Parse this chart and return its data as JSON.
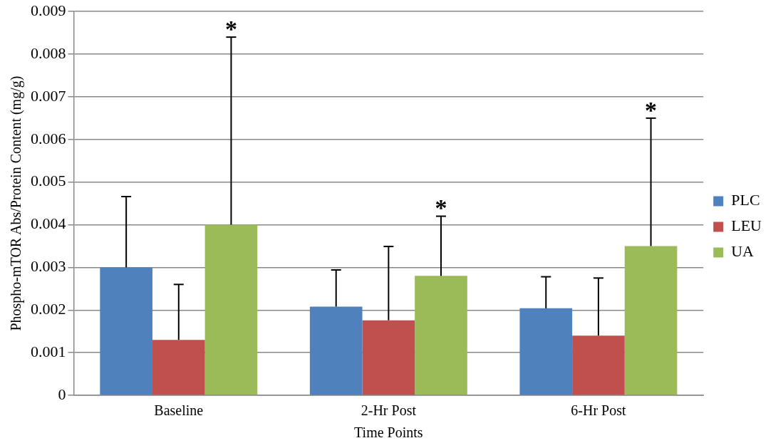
{
  "chart_data": {
    "type": "bar",
    "xlabel": "Time Points",
    "ylabel": "Phospho-mTOR Abs/Protein Content (mg/g)",
    "categories": [
      "Baseline",
      "2-Hr Post",
      "6-Hr Post"
    ],
    "series": [
      {
        "name": "PLC",
        "color": "#4f81bd",
        "values": [
          0.003,
          0.00208,
          0.00204
        ],
        "errors": [
          [
            0.003,
            0.00466
          ],
          [
            0.00208,
            0.00294
          ],
          [
            0.00204,
            0.00278
          ]
        ]
      },
      {
        "name": "LEU",
        "color": "#c0504d",
        "values": [
          0.0013,
          0.00176,
          0.0014
        ],
        "errors": [
          [
            0.0013,
            0.0026
          ],
          [
            0.00176,
            0.00349
          ],
          [
            0.0014,
            0.00275
          ]
        ]
      },
      {
        "name": "UA",
        "color": "#9bbb59",
        "values": [
          0.004,
          0.0028,
          0.0035
        ],
        "errors": [
          [
            0.004,
            0.0084
          ],
          [
            0.0028,
            0.0042
          ],
          [
            0.0035,
            0.0065
          ]
        ]
      }
    ],
    "ylim": [
      0,
      0.009
    ],
    "yticks": [
      0,
      0.001,
      0.002,
      0.003,
      0.004,
      0.005,
      0.006,
      0.007,
      0.008,
      0.009
    ],
    "grid": "y",
    "legend": "right",
    "annotations": [
      "*",
      "*",
      "*"
    ]
  }
}
